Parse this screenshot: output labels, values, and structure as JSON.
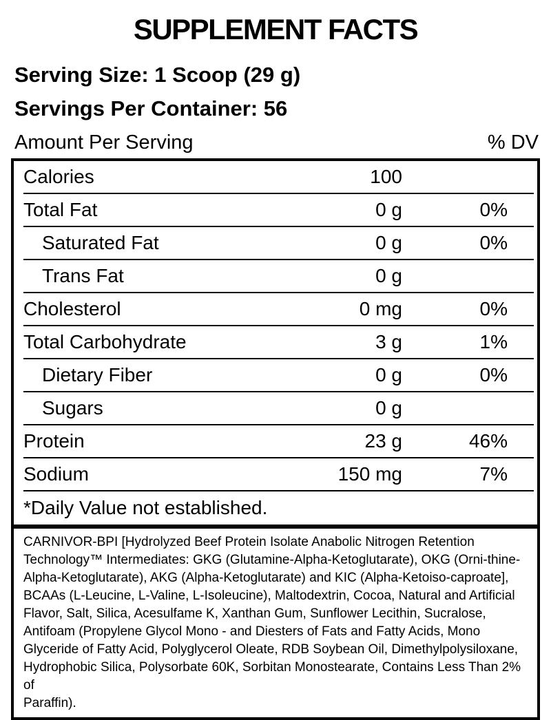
{
  "title": "SUPPLEMENT FACTS",
  "serving": {
    "size_line": "Serving Size: 1 Scoop (29 g)",
    "per_container_line": "Servings Per Container: 56"
  },
  "header": {
    "amount_label": "Amount Per Serving",
    "dv_label": "% DV"
  },
  "table": {
    "rows": [
      {
        "label": "Calories",
        "amount": "100",
        "dv": ""
      },
      {
        "label": "Total Fat",
        "amount": "0 g",
        "dv": "0%"
      },
      {
        "label": "Saturated Fat",
        "amount": "0 g",
        "dv": "0%"
      },
      {
        "label": "Trans Fat",
        "amount": "0 g",
        "dv": ""
      },
      {
        "label": "Cholesterol",
        "amount": "0 mg",
        "dv": "0%"
      },
      {
        "label": "Total Carbohydrate",
        "amount": "3 g",
        "dv": "1%"
      },
      {
        "label": "Dietary Fiber",
        "amount": "0 g",
        "dv": "0%"
      },
      {
        "label": "Sugars",
        "amount": "0 g",
        "dv": ""
      },
      {
        "label": "Protein",
        "amount": "23 g",
        "dv": "46%"
      },
      {
        "label": "Sodium",
        "amount": "150 mg",
        "dv": "7%"
      }
    ],
    "footnote": "*Daily Value not established."
  },
  "ingredients": {
    "text": "CARNIVOR-BPI [Hydrolyzed Beef Protein Isolate Anabolic Nitrogen Retention\nTechnology™ Intermediates: GKG (Glutamine-Alpha-Ketoglutarate), OKG (Orni-thine-\nAlpha-Ketoglutarate), AKG (Alpha-Ketoglutarate) and KIC (Alpha-Ketoiso-caproate],\nBCAAs (L-Leucine, L-Valine, L-Isoleucine), Maltodextrin, Cocoa, Natural and Artificial\nFlavor, Salt, Silica, Acesulfame K, Xanthan Gum, Sunflower Lecithin, Sucralose,\nAntifoam (Propylene Glycol Mono - and Diesters of Fats and Fatty Acids, Mono\nGlyceride of Fatty Acid, Polyglycerol Oleate, RDB Soybean Oil, Dimethylpolysiloxane,\nHydrophobic Silica, Polysorbate 60K, Sorbitan Monostearate, Contains Less Than 2% of\nParaffin)."
  },
  "colors": {
    "text": "#000000",
    "background": "#ffffff",
    "border": "#000000"
  }
}
